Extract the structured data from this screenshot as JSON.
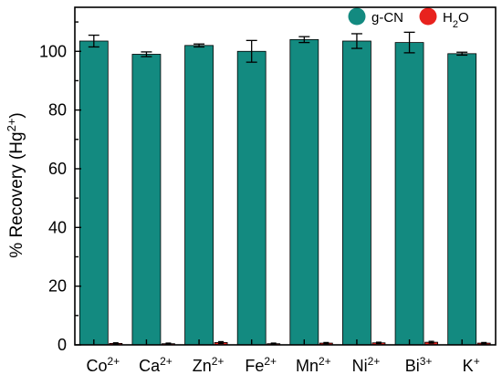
{
  "chart_data": {
    "type": "bar",
    "title": "",
    "xlabel": "",
    "ylabel": "% Recovery (Hg2+)",
    "ylabel_parts": {
      "main": "% Recovery (Hg",
      "sup": "2+",
      "close": ")"
    },
    "ylim": [
      0,
      115
    ],
    "yticks": [
      0,
      20,
      40,
      60,
      80,
      100
    ],
    "grid": false,
    "legend_position": "top-right",
    "categories": [
      {
        "base": "Co",
        "sup": "2+"
      },
      {
        "base": "Ca",
        "sup": "2+"
      },
      {
        "base": "Zn",
        "sup": "2+"
      },
      {
        "base": "Fe",
        "sup": "2+"
      },
      {
        "base": "Mn",
        "sup": "2+"
      },
      {
        "base": "Ni",
        "sup": "2+"
      },
      {
        "base": "Bi",
        "sup": "3+"
      },
      {
        "base": "K",
        "sup": "+"
      }
    ],
    "series": [
      {
        "name": "g-CN",
        "color": "#138a80",
        "values": [
          103.5,
          99.0,
          102.0,
          100.0,
          104.0,
          103.5,
          103.0,
          99.2
        ],
        "errors": [
          2.0,
          0.8,
          0.5,
          3.7,
          1.0,
          2.5,
          3.5,
          0.5
        ]
      },
      {
        "name": "H2O",
        "name_parts": {
          "base": "H",
          "sub": "2",
          "rest": "O"
        },
        "color": "#e8221e",
        "values": [
          0.5,
          0.4,
          0.8,
          0.4,
          0.6,
          0.7,
          0.9,
          0.6
        ],
        "errors": [
          0.2,
          0.2,
          0.3,
          0.2,
          0.2,
          0.2,
          0.3,
          0.2
        ]
      }
    ]
  }
}
